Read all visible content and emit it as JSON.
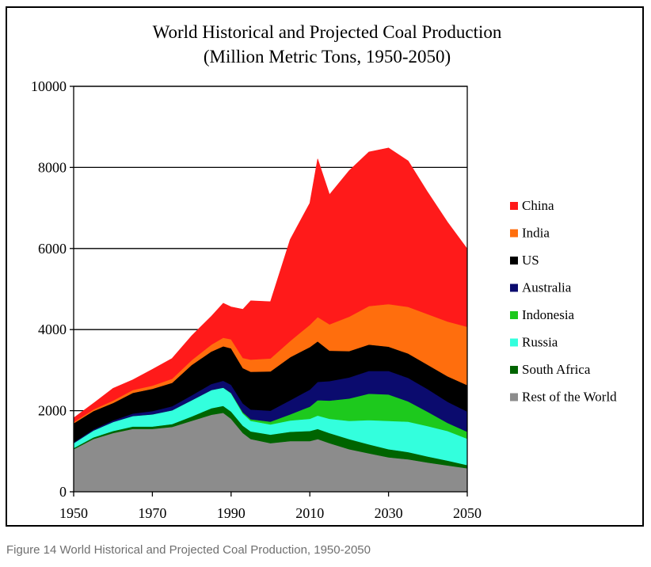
{
  "chart_data": {
    "type": "area",
    "stacked": true,
    "title": "World Historical and Projected Coal Production",
    "subtitle": "(Million Metric Tons, 1950-2050)",
    "xlabel": "",
    "ylabel": "",
    "xlim": [
      1950,
      2050
    ],
    "ylim": [
      0,
      10000
    ],
    "x_ticks": [
      1950,
      1970,
      1990,
      2010,
      2030,
      2050
    ],
    "y_ticks": [
      0,
      2000,
      4000,
      6000,
      8000,
      10000
    ],
    "grid": "horizontal",
    "legend_position": "right",
    "x": [
      1950,
      1955,
      1960,
      1965,
      1970,
      1975,
      1980,
      1985,
      1988,
      1990,
      1993,
      1995,
      2000,
      2005,
      2010,
      2012,
      2015,
      2020,
      2025,
      2030,
      2035,
      2040,
      2045,
      2050
    ],
    "series": [
      {
        "name": "Rest of the World",
        "color": "#8c8c8c",
        "values": [
          1050,
          1300,
          1450,
          1550,
          1550,
          1600,
          1750,
          1900,
          1950,
          1800,
          1450,
          1300,
          1200,
          1250,
          1250,
          1300,
          1200,
          1050,
          950,
          850,
          800,
          720,
          650,
          580
        ]
      },
      {
        "name": "South Africa",
        "color": "#006400",
        "values": [
          30,
          40,
          50,
          60,
          60,
          70,
          110,
          160,
          170,
          180,
          180,
          190,
          210,
          230,
          250,
          250,
          250,
          250,
          220,
          200,
          180,
          150,
          120,
          80
        ]
      },
      {
        "name": "Russia",
        "color": "#33ffdd",
        "values": [
          120,
          170,
          220,
          260,
          300,
          340,
          400,
          450,
          450,
          450,
          300,
          260,
          250,
          280,
          300,
          330,
          350,
          450,
          600,
          700,
          750,
          750,
          730,
          650
        ]
      },
      {
        "name": "Indonesia",
        "color": "#1dc91d",
        "values": [
          0,
          0,
          0,
          0,
          0,
          0,
          0,
          0,
          0,
          10,
          30,
          40,
          70,
          150,
          300,
          380,
          450,
          550,
          650,
          650,
          500,
          350,
          200,
          170
        ]
      },
      {
        "name": "Australia",
        "color": "#0b0b6e",
        "values": [
          20,
          30,
          40,
          60,
          80,
          100,
          120,
          150,
          170,
          200,
          220,
          240,
          270,
          350,
          420,
          450,
          480,
          520,
          560,
          580,
          580,
          560,
          520,
          500
        ]
      },
      {
        "name": "US",
        "color": "#000000",
        "values": [
          470,
          450,
          430,
          510,
          550,
          580,
          750,
          800,
          850,
          900,
          870,
          930,
          970,
          1060,
          1050,
          1000,
          750,
          650,
          650,
          600,
          600,
          600,
          630,
          650
        ]
      },
      {
        "name": "India",
        "color": "#ff6e0d",
        "values": [
          30,
          40,
          60,
          70,
          80,
          100,
          120,
          170,
          210,
          220,
          250,
          300,
          320,
          400,
          550,
          600,
          650,
          850,
          950,
          1050,
          1150,
          1250,
          1350,
          1440
        ]
      },
      {
        "name": "China",
        "color": "#ff1a1a",
        "values": [
          100,
          150,
          300,
          250,
          400,
          500,
          600,
          700,
          850,
          800,
          1200,
          1450,
          1400,
          2500,
          3000,
          3900,
          3200,
          3600,
          3800,
          3850,
          3600,
          3000,
          2450,
          1920
        ]
      }
    ]
  },
  "caption": "Figure 14 World Historical and Projected Coal Production, 1950-2050"
}
